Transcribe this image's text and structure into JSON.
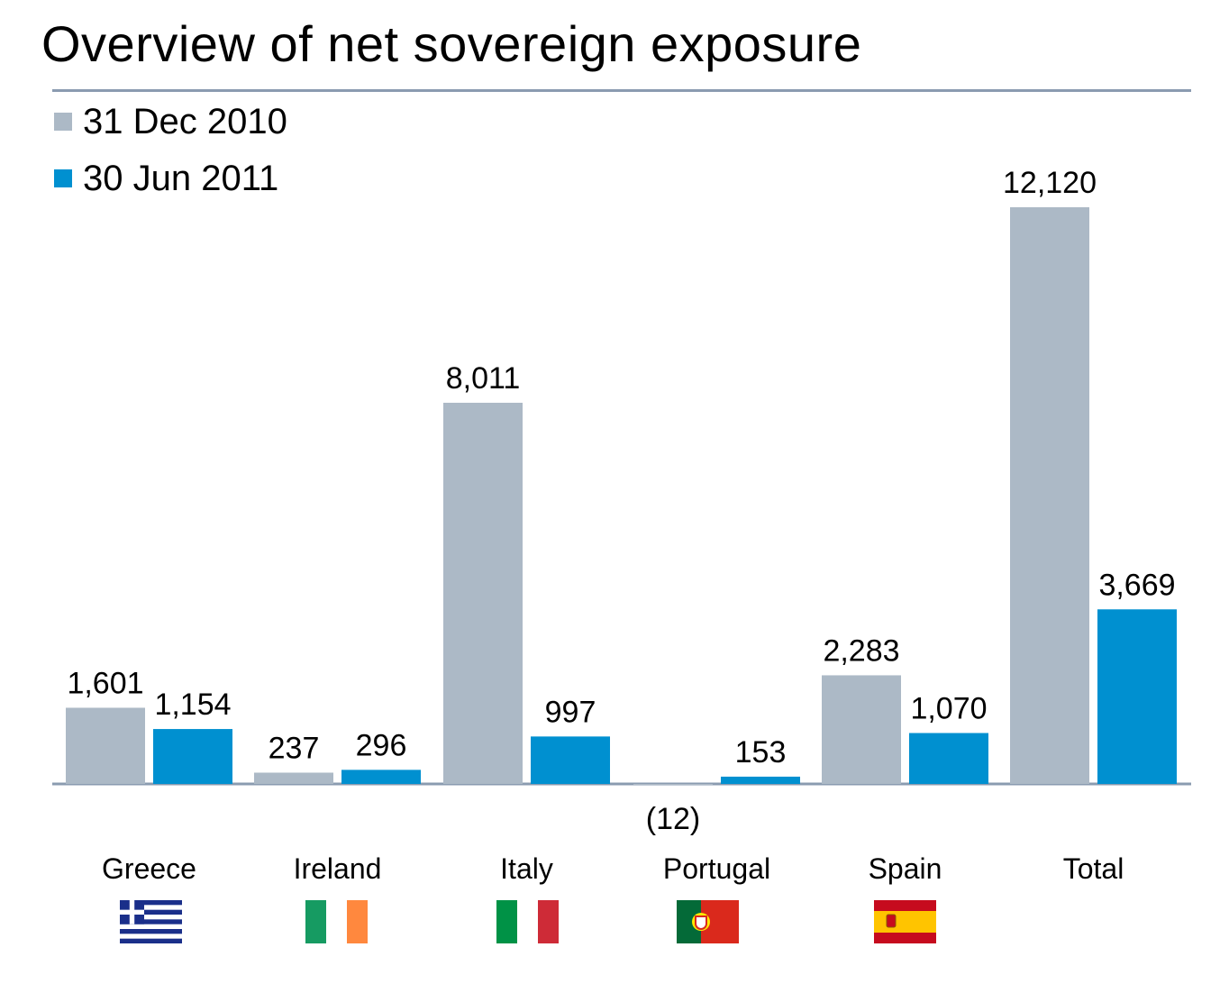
{
  "chart_data": {
    "type": "bar",
    "title": "Overview of net sovereign exposure",
    "xlabel": "",
    "ylabel": "",
    "categories": [
      "Greece",
      "Ireland",
      "Italy",
      "Portugal",
      "Spain",
      "Total"
    ],
    "series": [
      {
        "name": "31 Dec 2010",
        "color": "#acb9c6",
        "values": [
          1601,
          237,
          8011,
          -12,
          2283,
          12120
        ],
        "labels": [
          "1,601",
          "237",
          "8,011",
          "(12)",
          "2,283",
          "12,120"
        ]
      },
      {
        "name": "30 Jun 2011",
        "color": "#0090d0",
        "values": [
          1154,
          296,
          997,
          153,
          1070,
          3669
        ],
        "labels": [
          "1,154",
          "296",
          "997",
          "153",
          "1,070",
          "3,669"
        ]
      }
    ],
    "ylim": [
      -12,
      12120
    ],
    "grid": false,
    "legend": "top-left",
    "flags": [
      "greece-flag",
      "ireland-flag",
      "italy-flag",
      "portugal-flag",
      "spain-flag"
    ]
  }
}
